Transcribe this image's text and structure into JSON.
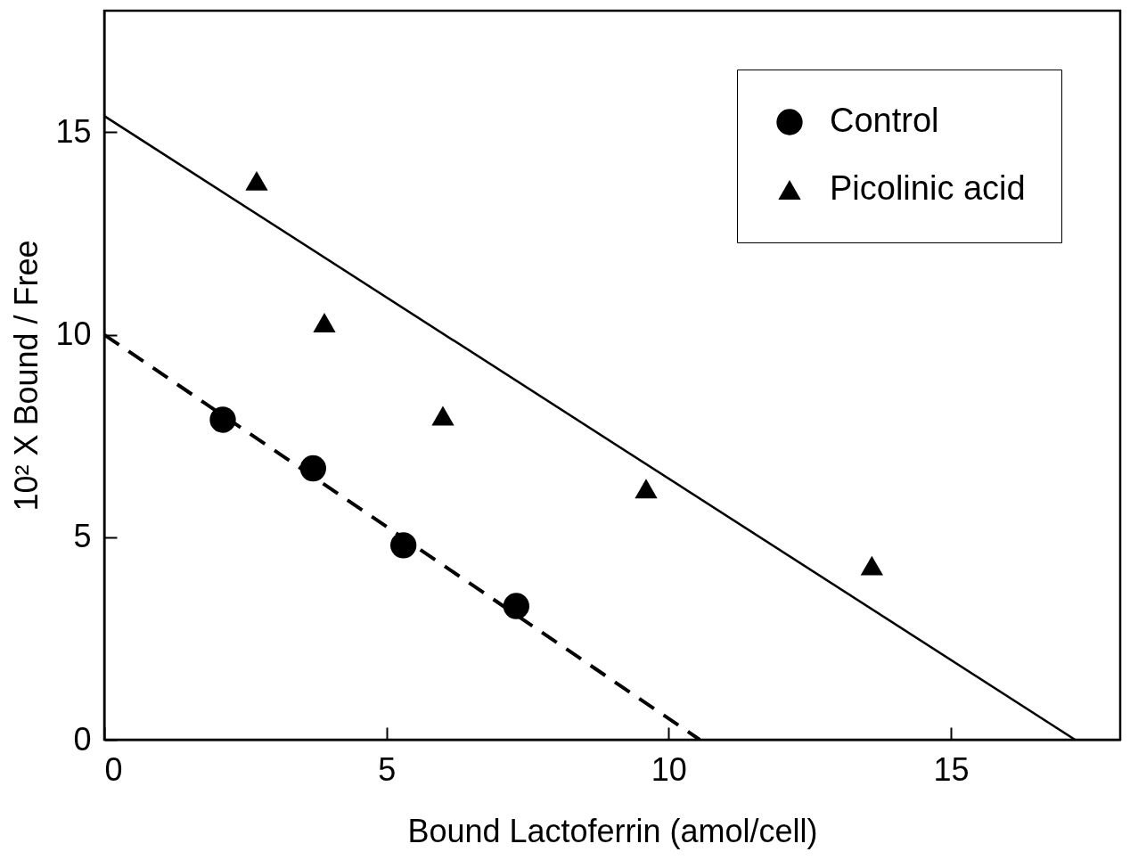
{
  "chart_data": {
    "type": "scatter",
    "xlabel": "Bound Lactoferrin  (amol/cell)",
    "ylabel": "10² X Bound / Free",
    "xlim": [
      0,
      18
    ],
    "ylim": [
      0,
      18
    ],
    "xticks": [
      0,
      5,
      10,
      15
    ],
    "yticks": [
      0,
      5,
      10,
      15
    ],
    "legend": "top right",
    "series": [
      {
        "name": "Control",
        "color": "#000000",
        "marker": "circle",
        "x": [
          2.1,
          3.7,
          5.3,
          7.3
        ],
        "values": [
          7.9,
          6.7,
          4.8,
          3.3
        ]
      },
      {
        "name": "Picolinic acid",
        "color": "#000000",
        "marker": "triangle",
        "x": [
          2.7,
          3.9,
          6.0,
          9.6,
          13.6
        ],
        "values": [
          13.8,
          10.3,
          8.0,
          6.2,
          4.3
        ]
      },
      {
        "type": "line",
        "color": "#000000",
        "line_style": "dashed",
        "marker": "none",
        "x": [
          0,
          10.55
        ],
        "values": [
          10,
          0
        ]
      },
      {
        "type": "line",
        "color": "#000000",
        "line_style": "solid",
        "marker": "none",
        "x": [
          0,
          17.2
        ],
        "values": [
          15.4,
          0
        ]
      }
    ]
  }
}
